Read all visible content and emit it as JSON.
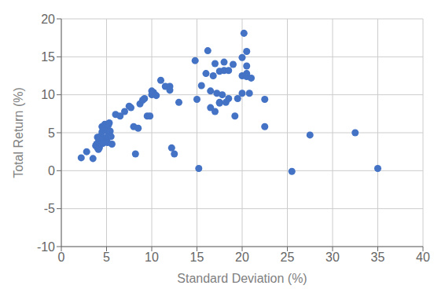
{
  "chart_data": {
    "type": "scatter",
    "xlabel": "Standard Deviation (%)",
    "ylabel": "Total Return (%)",
    "x": [
      2.2,
      2.8,
      3.5,
      3.8,
      3.9,
      4.0,
      4.0,
      4.1,
      4.1,
      4.2,
      4.2,
      4.3,
      4.4,
      4.5,
      4.5,
      4.6,
      4.6,
      4.7,
      4.8,
      5.0,
      5.0,
      5.1,
      5.1,
      5.2,
      5.3,
      5.4,
      5.5,
      5.6,
      6.0,
      6.5,
      7.0,
      7.5,
      7.7,
      8.0,
      8.2,
      8.5,
      8.7,
      9.0,
      9.2,
      9.5,
      9.8,
      10.0,
      10.0,
      10.2,
      10.5,
      11.0,
      11.5,
      12.0,
      12.0,
      12.2,
      12.5,
      13.0,
      14.8,
      15.0,
      15.2,
      15.5,
      16.0,
      16.2,
      16.5,
      16.5,
      16.8,
      17.0,
      17.0,
      17.2,
      17.5,
      17.5,
      17.5,
      17.8,
      18.0,
      18.0,
      18.2,
      18.5,
      18.5,
      19.0,
      19.2,
      19.5,
      20.0,
      20.0,
      20.0,
      20.2,
      20.5,
      20.5,
      20.5,
      20.5,
      20.8,
      21.0,
      22.5,
      22.5,
      25.5,
      27.5,
      32.5,
      35.0
    ],
    "values": [
      1.7,
      2.5,
      1.6,
      3.3,
      3.5,
      4.4,
      3.0,
      2.8,
      3.8,
      4.2,
      3.0,
      4.5,
      3.5,
      5.8,
      5.1,
      4.3,
      3.6,
      5.5,
      6.1,
      4.0,
      5.3,
      4.5,
      3.7,
      6.0,
      6.3,
      5.2,
      4.5,
      3.5,
      7.4,
      7.2,
      7.8,
      8.5,
      8.3,
      5.8,
      2.2,
      5.6,
      8.8,
      9.3,
      9.5,
      7.2,
      7.2,
      10.5,
      10.0,
      10.3,
      9.9,
      11.9,
      11.1,
      11.1,
      10.6,
      3.0,
      2.2,
      9.0,
      14.5,
      9.4,
      0.3,
      11.2,
      12.8,
      15.8,
      8.3,
      10.5,
      12.5,
      14.1,
      7.8,
      10.2,
      13.1,
      9.0,
      8.9,
      10.0,
      13.2,
      14.3,
      9.0,
      9.5,
      13.2,
      14.0,
      7.2,
      9.5,
      14.9,
      12.5,
      10.2,
      18.1,
      15.7,
      13.8,
      12.8,
      12.4,
      10.2,
      12.2,
      5.8,
      9.4,
      -0.1,
      4.7,
      5.0,
      0.3
    ],
    "color": "#4472C4",
    "xlim": [
      0,
      40
    ],
    "ylim": [
      -10,
      20
    ],
    "xticks": [
      0,
      5,
      10,
      15,
      20,
      25,
      30,
      35,
      40
    ],
    "yticks": [
      -10,
      -5,
      0,
      5,
      10,
      15,
      20
    ],
    "grid": true
  }
}
